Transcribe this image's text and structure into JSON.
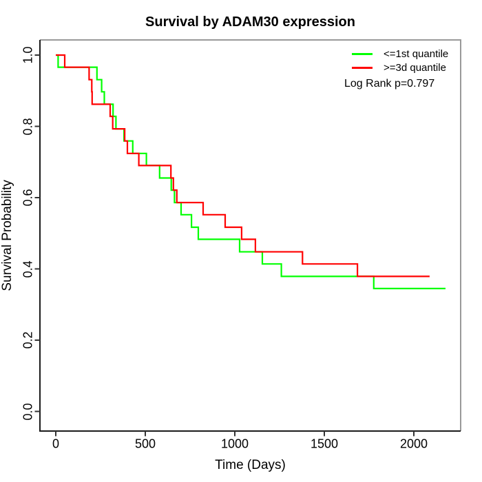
{
  "chart_data": {
    "type": "line",
    "subtype": "kaplan-meier-step",
    "title": "Survival by ADAM30 expression",
    "xlabel": "Time (Days)",
    "ylabel": "Survival Probability",
    "xlim": [
      0,
      2200
    ],
    "ylim": [
      0.0,
      1.0
    ],
    "xticks": [
      0,
      500,
      1000,
      1500,
      2000
    ],
    "yticks": [
      0.0,
      0.2,
      0.4,
      0.6,
      0.8,
      1.0
    ],
    "ytick_labels": [
      "0.0",
      "0.2",
      "0.4",
      "0.6",
      "0.8",
      "1.0"
    ],
    "grid": false,
    "legend_position": "top-right",
    "annotation": "Log Rank p=0.797",
    "series": [
      {
        "name": "<=1st quantile",
        "color": "#00ff00",
        "end_time": 2177,
        "points": [
          [
            0,
            1.0
          ],
          [
            13,
            0.966
          ],
          [
            230,
            0.931
          ],
          [
            256,
            0.897
          ],
          [
            271,
            0.862
          ],
          [
            320,
            0.828
          ],
          [
            336,
            0.793
          ],
          [
            381,
            0.759
          ],
          [
            430,
            0.724
          ],
          [
            506,
            0.69
          ],
          [
            580,
            0.655
          ],
          [
            645,
            0.621
          ],
          [
            663,
            0.586
          ],
          [
            700,
            0.552
          ],
          [
            758,
            0.517
          ],
          [
            796,
            0.483
          ],
          [
            1027,
            0.448
          ],
          [
            1154,
            0.414
          ],
          [
            1260,
            0.379
          ],
          [
            1776,
            0.345
          ]
        ]
      },
      {
        "name": ">=3d quantile",
        "color": "#ff0000",
        "end_time": 2088,
        "points": [
          [
            0,
            1.0
          ],
          [
            50,
            0.966
          ],
          [
            186,
            0.931
          ],
          [
            201,
            0.897
          ],
          [
            203,
            0.862
          ],
          [
            304,
            0.828
          ],
          [
            318,
            0.793
          ],
          [
            385,
            0.759
          ],
          [
            400,
            0.724
          ],
          [
            464,
            0.69
          ],
          [
            643,
            0.655
          ],
          [
            657,
            0.621
          ],
          [
            676,
            0.586
          ],
          [
            823,
            0.552
          ],
          [
            946,
            0.517
          ],
          [
            1038,
            0.483
          ],
          [
            1115,
            0.448
          ],
          [
            1378,
            0.414
          ],
          [
            1685,
            0.379
          ]
        ]
      }
    ],
    "colors": {
      "box_top_right": "#999999",
      "box_left_bottom": "#1a1a1a",
      "tick": "#333333",
      "text": "#000000"
    }
  }
}
